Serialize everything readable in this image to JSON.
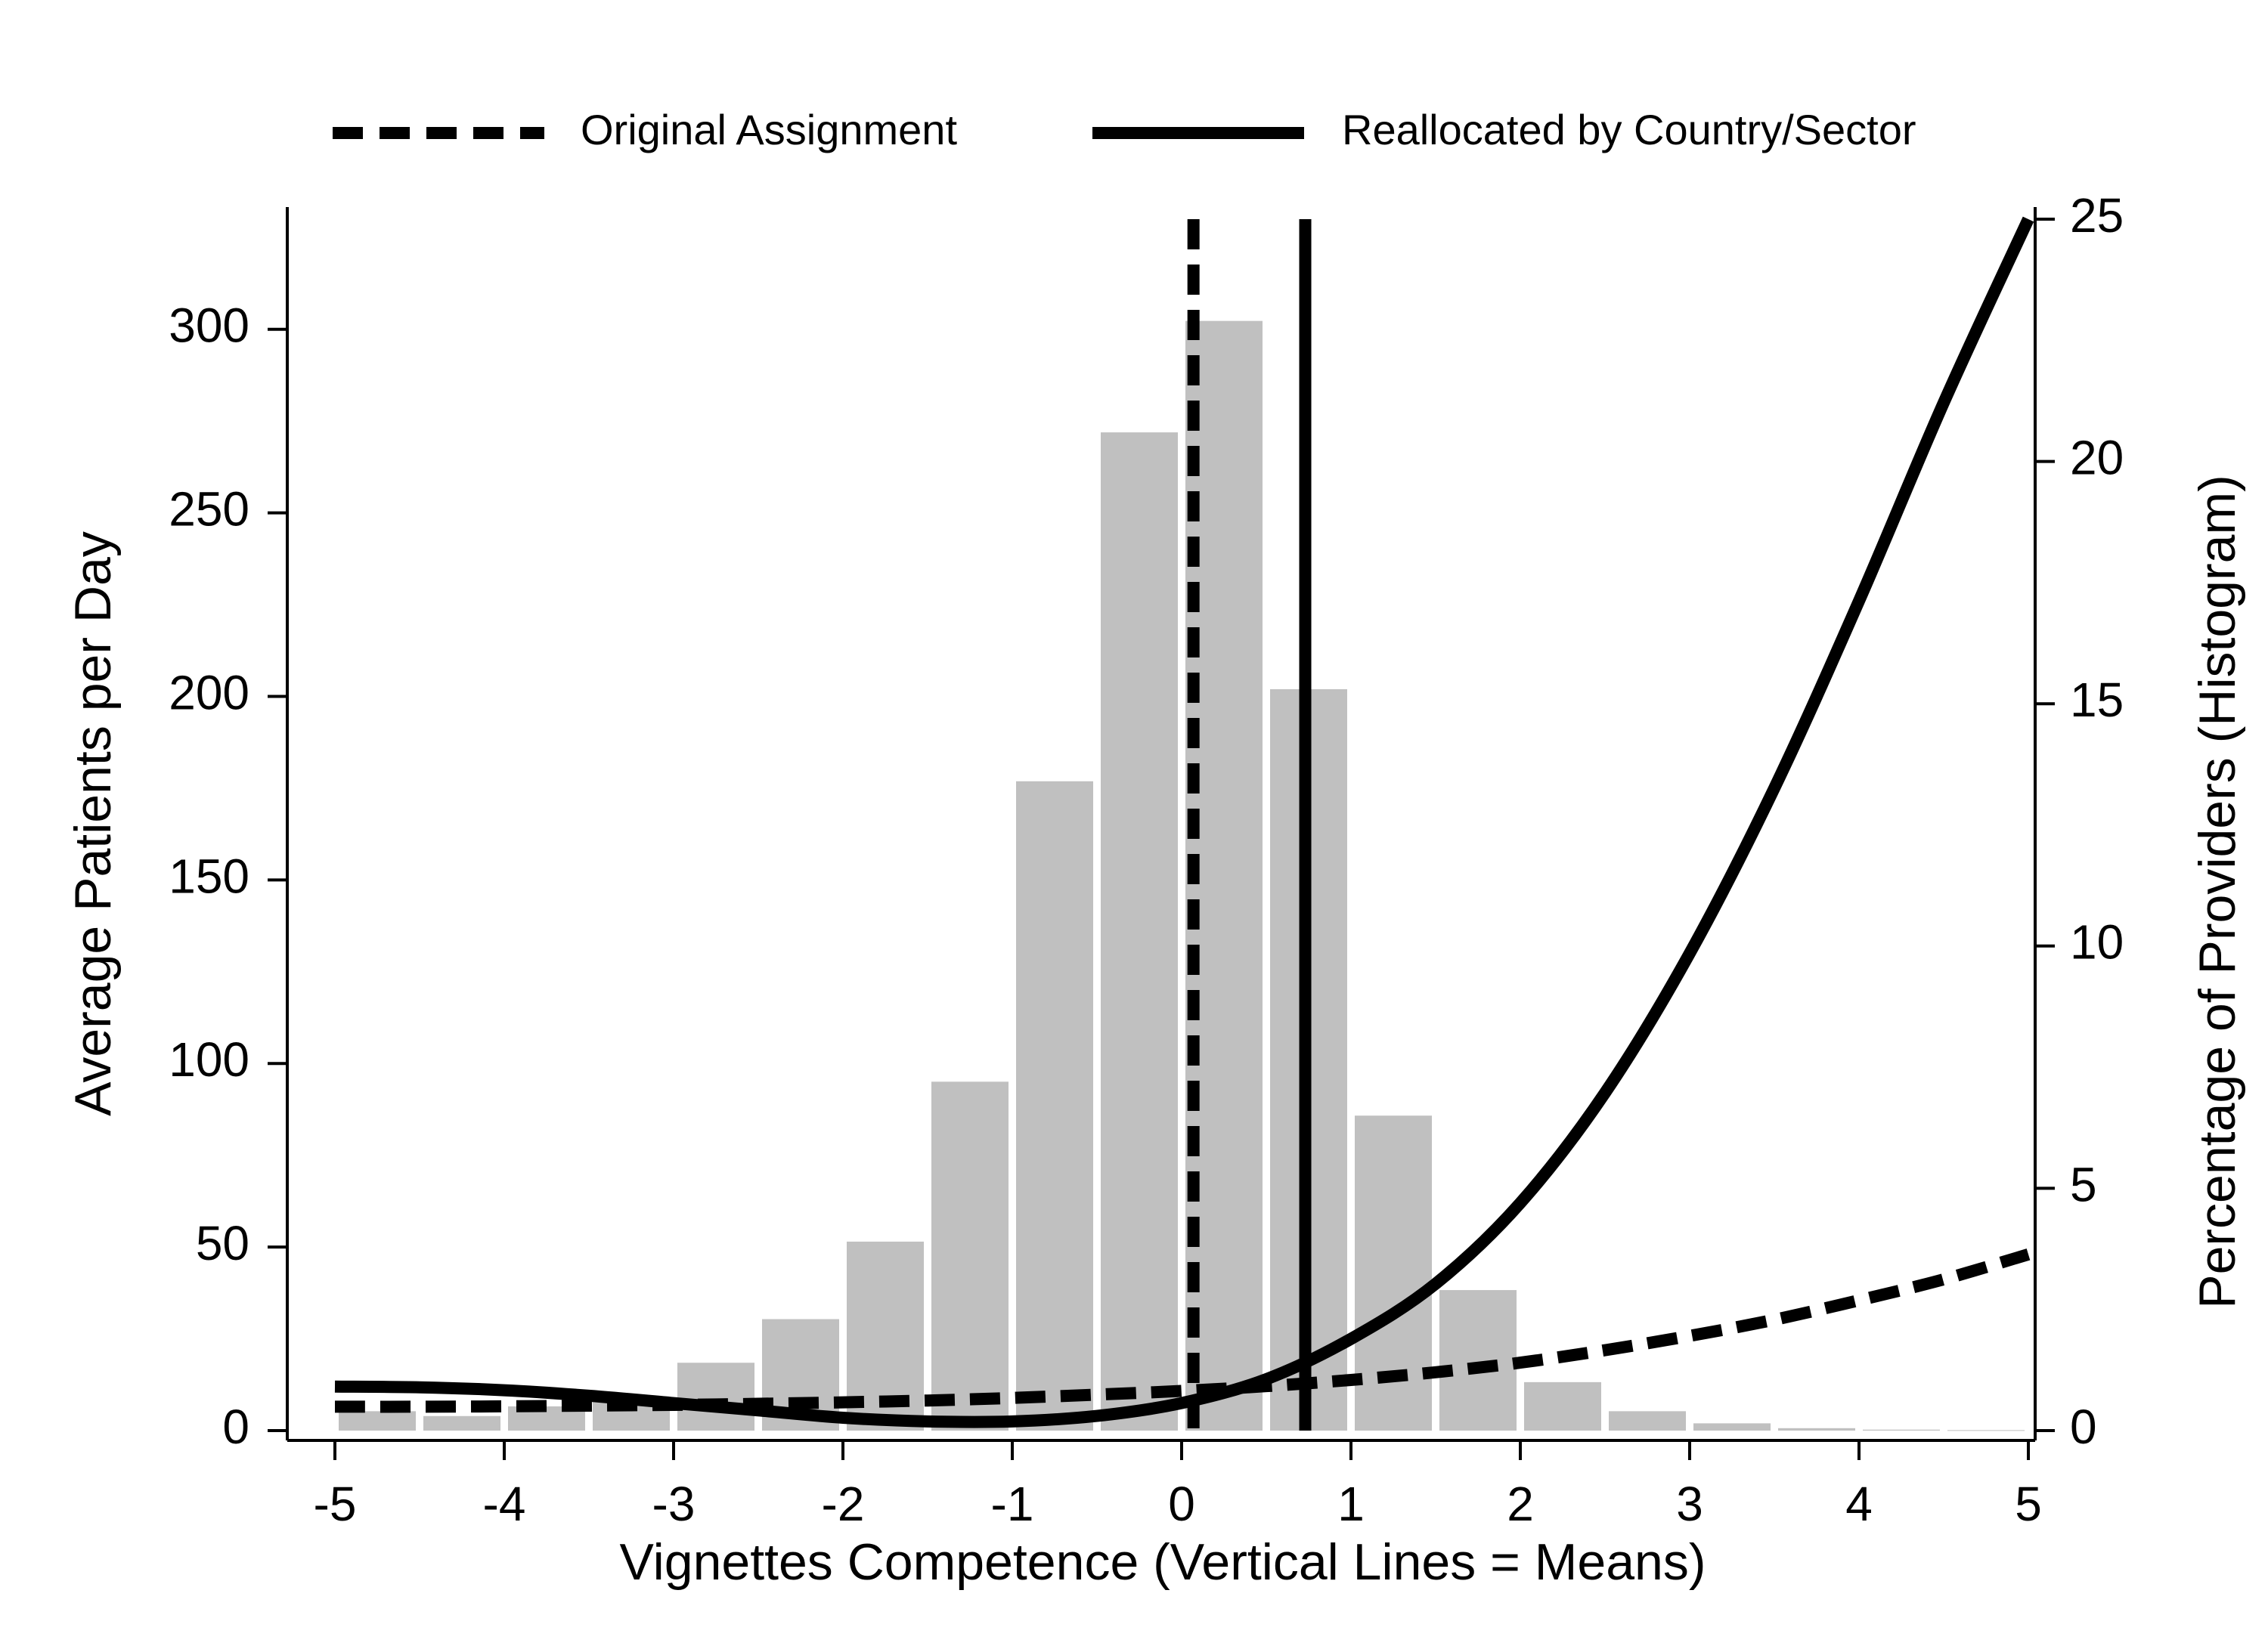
{
  "chart_data": {
    "type": "bar",
    "xlabel": "Vignettes Competence (Vertical Lines = Means)",
    "ylabel": "Average Patients per Day",
    "y2label": "Percentage of Providers (Histogram)",
    "xlim": [
      -5,
      5
    ],
    "ylim": [
      0,
      330
    ],
    "y2lim": [
      0,
      25
    ],
    "xticks": [
      -5,
      -4,
      -3,
      -2,
      -1,
      0,
      1,
      2,
      3,
      4,
      5
    ],
    "yticks": [
      0,
      50,
      100,
      150,
      200,
      250,
      300
    ],
    "y2ticks": [
      0,
      5,
      10,
      15,
      20,
      25
    ],
    "grid": false,
    "legend_position": "top",
    "legend": [
      {
        "label": "Original Assignment",
        "style": "dashed"
      },
      {
        "label": "Reallocated by Country/Sector",
        "style": "solid"
      }
    ],
    "histogram": {
      "axis": "right",
      "color": "#c0c0c0",
      "bin_width": 0.5,
      "bin_left_edges": [
        -5,
        -4.5,
        -4,
        -3.5,
        -3,
        -2.5,
        -2,
        -1.5,
        -1,
        -0.5,
        0,
        0.5,
        1,
        1.5,
        2,
        2.5,
        3,
        3.5,
        4,
        4.5
      ],
      "values": [
        0.4,
        0.3,
        0.5,
        0.6,
        1.4,
        2.3,
        3.9,
        7.2,
        13.4,
        20.6,
        22.9,
        15.3,
        6.5,
        2.9,
        1.0,
        0.4,
        0.15,
        0.05,
        0.02,
        0.01
      ]
    },
    "series": [
      {
        "name": "Original Assignment",
        "style": "dashed",
        "axis": "left",
        "x": [
          -5,
          -4.5,
          -4,
          -3.5,
          -3,
          -2.5,
          -2,
          -1.5,
          -1,
          -0.5,
          0,
          0.5,
          1,
          1.5,
          2,
          2.5,
          3,
          3.5,
          4,
          4.5,
          5
        ],
        "y": [
          6.5,
          6.5,
          6.6,
          6.8,
          7.0,
          7.3,
          7.7,
          8.2,
          8.9,
          9.8,
          10.8,
          12.1,
          13.8,
          15.9,
          18.5,
          21.9,
          25.8,
          30.2,
          35.5,
          41.2,
          48
        ]
      },
      {
        "name": "Reallocated by Country/Sector",
        "style": "solid",
        "axis": "left",
        "x": [
          -5,
          -4.5,
          -4,
          -3.5,
          -3,
          -2.5,
          -2,
          -1.5,
          -1,
          -0.5,
          0,
          0.5,
          1,
          1.5,
          2,
          2.5,
          3,
          3.5,
          4,
          4.5,
          5
        ],
        "y": [
          12,
          11.8,
          11,
          9.5,
          7.5,
          5.5,
          3.5,
          2.5,
          2.5,
          4,
          7.5,
          14,
          25,
          40,
          62,
          92,
          130,
          175,
          226,
          280,
          330
        ]
      }
    ],
    "vertical_lines": [
      {
        "name": "Original Assignment",
        "style": "dashed",
        "x": 0.07
      },
      {
        "name": "Reallocated by Country/Sector",
        "style": "solid",
        "x": 0.73
      }
    ]
  }
}
